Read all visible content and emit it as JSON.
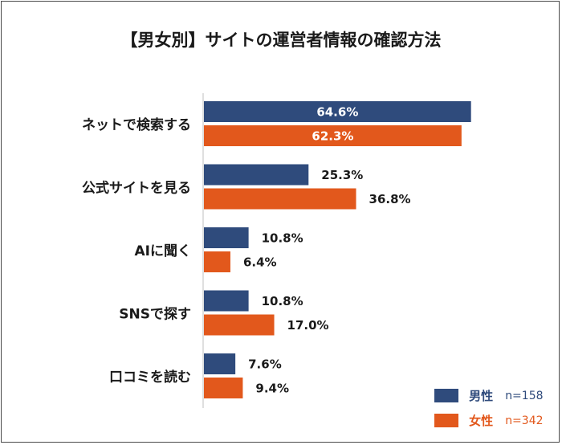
{
  "title": "【男女別】サイトの運営者情報の確認方法",
  "chart_data": {
    "type": "bar",
    "orientation": "horizontal",
    "title": "【男女別】サイトの運営者情報の確認方法",
    "categories": [
      "ネットで検索する",
      "公式サイトを見る",
      "AIに聞く",
      "SNSで探す",
      "口コミを読む"
    ],
    "series": [
      {
        "name": "男性",
        "n_label": "n=158",
        "color": "#2f4b7c",
        "values": [
          64.6,
          25.3,
          10.8,
          10.8,
          7.6
        ],
        "labels": [
          "64.6%",
          "25.3%",
          "10.8%",
          "10.8%",
          "7.6%"
        ]
      },
      {
        "name": "女性",
        "n_label": "n=342",
        "color": "#e2581c",
        "values": [
          62.3,
          36.8,
          6.4,
          17.0,
          9.4
        ],
        "labels": [
          "62.3%",
          "36.8%",
          "6.4%",
          "17.0%",
          "9.4%"
        ]
      }
    ],
    "xlim": [
      0,
      100
    ],
    "grid": false,
    "legend_position": "bottom-right",
    "value_label_style": {
      "inside_threshold": 50,
      "inside_color": "#ffffff",
      "outside_color": "#1a1a1a"
    }
  }
}
